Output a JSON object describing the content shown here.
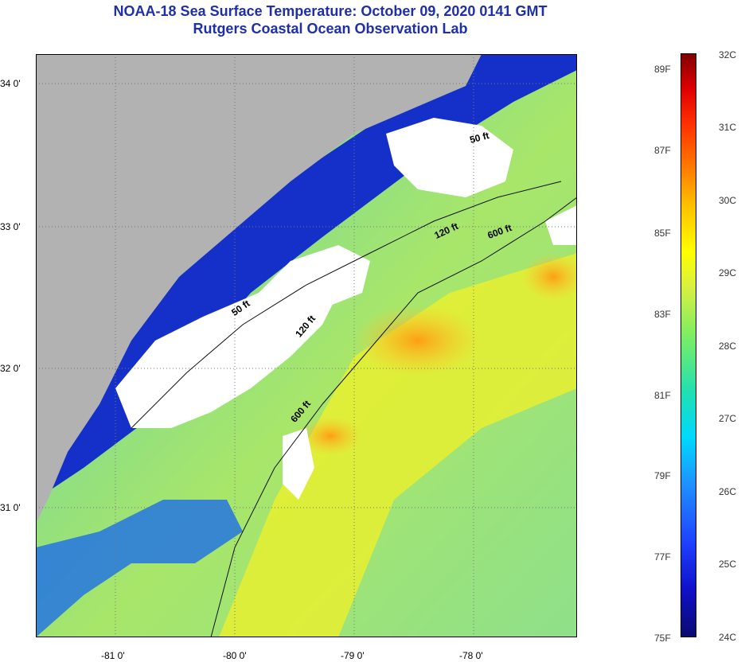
{
  "header": {
    "title": "NOAA-18 Sea Surface Temperature:  October 09, 2020 0141 GMT",
    "subtitle": "Rutgers Coastal Ocean Observation Lab"
  },
  "map": {
    "lat_labels": [
      "34 0'",
      "33 0'",
      "32 0'",
      "31 0'"
    ],
    "lon_labels": [
      "-81 0'",
      "-80 0'",
      "-79 0'",
      "-78 0'"
    ],
    "contour_labels": [
      "50 ft",
      "120 ft",
      "600 ft",
      "50 ft",
      "120 ft",
      "600 ft"
    ]
  },
  "colorbar": {
    "fahrenheit": [
      "89F",
      "87F",
      "85F",
      "83F",
      "81F",
      "79F",
      "77F",
      "75F"
    ],
    "celsius": [
      "32C",
      "31C",
      "30C",
      "29C",
      "28C",
      "27C",
      "26C",
      "25C",
      "24C"
    ]
  },
  "colors": {
    "title": "#1f2fa8",
    "land": "#b2b2b2",
    "cloud": "#ffffff",
    "cold": "#0a1ab0",
    "warm": "#ff9a10"
  }
}
